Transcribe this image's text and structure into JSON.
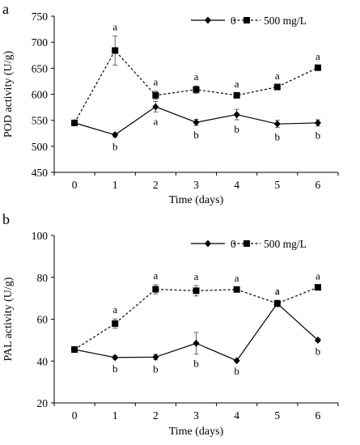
{
  "chart_data": [
    {
      "panel_label": "a",
      "type": "line",
      "xlabel": "Time (days)",
      "ylabel": "POD activity (U/g)",
      "x": [
        0,
        1,
        2,
        3,
        4,
        5,
        6
      ],
      "ylim": [
        450,
        750
      ],
      "yticks": [
        450,
        500,
        550,
        600,
        650,
        700,
        750
      ],
      "grid": false,
      "legend_position": "top-right",
      "series": [
        {
          "name": "0",
          "marker": "diamond",
          "line_style": "solid",
          "values": [
            545,
            522,
            576,
            546,
            561,
            543,
            545
          ],
          "errors": [
            5,
            4,
            10,
            6,
            10,
            7,
            6
          ],
          "letters": [
            "",
            "b",
            "a",
            "b",
            "b",
            "b",
            "b"
          ]
        },
        {
          "name": "500 mg/L",
          "marker": "square",
          "line_style": "dashed",
          "values": [
            545,
            684,
            598,
            609,
            598,
            614,
            651
          ],
          "errors": [
            4,
            28,
            8,
            7,
            4,
            4,
            4
          ],
          "letters": [
            "",
            "a",
            "a",
            "a",
            "a",
            "a",
            "a"
          ]
        }
      ]
    },
    {
      "panel_label": "b",
      "type": "line",
      "xlabel": "Time (days)",
      "ylabel": "PAL activity (U/g)",
      "x": [
        0,
        1,
        2,
        3,
        4,
        5,
        6
      ],
      "ylim": [
        20,
        100
      ],
      "yticks": [
        20,
        40,
        60,
        80,
        100
      ],
      "grid": false,
      "legend_position": "top-right",
      "series": [
        {
          "name": "0",
          "marker": "diamond",
          "line_style": "solid",
          "values": [
            45.5,
            41.7,
            41.9,
            48.5,
            40.2,
            67.5,
            50
          ],
          "errors": [
            1,
            0.8,
            1.3,
            5.2,
            0.5,
            1.5,
            0.8
          ],
          "letters": [
            "",
            "b",
            "b",
            "b",
            "b",
            "a",
            "b"
          ]
        },
        {
          "name": "500 mg/L",
          "marker": "square",
          "line_style": "dashed",
          "values": [
            45.5,
            57.9,
            74.3,
            73.6,
            74.2,
            67.5,
            75.2
          ],
          "errors": [
            1,
            2.2,
            2.2,
            2.5,
            1,
            1.5,
            1
          ],
          "letters": [
            "",
            "a",
            "a",
            "a",
            "a",
            "a",
            "a"
          ]
        }
      ]
    }
  ]
}
